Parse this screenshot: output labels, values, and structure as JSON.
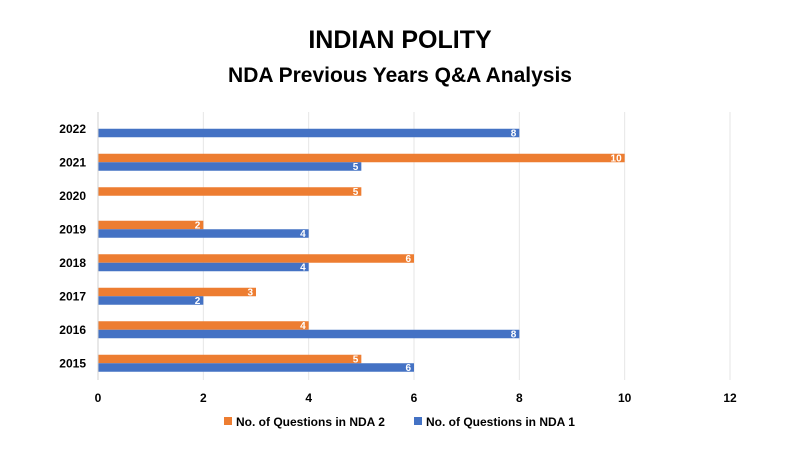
{
  "chart_data": {
    "type": "bar",
    "orientation": "horizontal",
    "title": "INDIAN POLITY",
    "subtitle": "NDA Previous Years Q&A Analysis",
    "xlabel": "",
    "ylabel": "",
    "categories": [
      "2015",
      "2016",
      "2017",
      "2018",
      "2019",
      "2020",
      "2021",
      "2022"
    ],
    "series": [
      {
        "name": "No. of Questions in NDA 2",
        "color": "#ED7D31",
        "values": [
          5,
          4,
          3,
          6,
          2,
          5,
          10,
          null
        ]
      },
      {
        "name": "No. of Questions in NDA 1",
        "color": "#4472C4",
        "values": [
          6,
          8,
          2,
          4,
          4,
          null,
          5,
          8
        ]
      }
    ],
    "xlim": [
      0,
      12
    ],
    "xticks": [
      "0",
      "2",
      "4",
      "6",
      "8",
      "10",
      "12"
    ],
    "grid": true,
    "data_labels": true,
    "legend_position": "bottom"
  }
}
